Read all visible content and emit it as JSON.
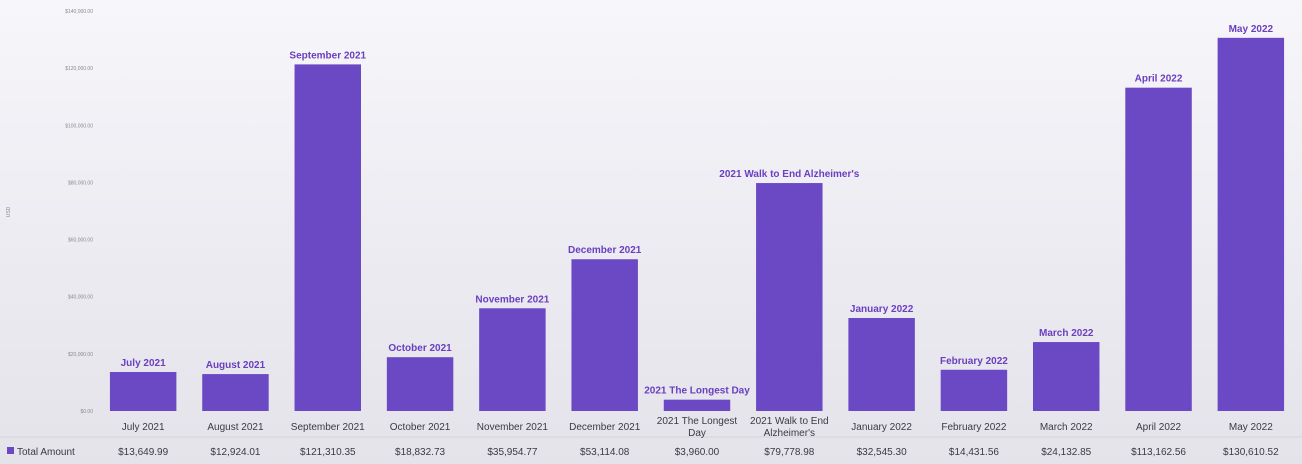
{
  "chart_data": {
    "type": "bar",
    "title": "",
    "xlabel": "",
    "ylabel": "USD",
    "ylim": [
      0,
      140000
    ],
    "yticks": [
      "$0.00",
      "$20,000.00",
      "$40,000.00",
      "$60,000.00",
      "$80,000.00",
      "$100,000.00",
      "$120,000.00",
      "$140,000.00"
    ],
    "ytick_values": [
      0,
      20000,
      40000,
      60000,
      80000,
      100000,
      120000,
      140000
    ],
    "categories": [
      "July 2021",
      "August 2021",
      "September 2021",
      "October 2021",
      "November 2021",
      "December 2021",
      "2021 The Longest Day",
      "2021 Walk to End Alzheimer's",
      "January 2022",
      "February 2022",
      "March 2022",
      "April 2022",
      "May 2022"
    ],
    "category_lines": [
      [
        "July 2021"
      ],
      [
        "August 2021"
      ],
      [
        "September 2021"
      ],
      [
        "October 2021"
      ],
      [
        "November 2021"
      ],
      [
        "December 2021"
      ],
      [
        "2021 The Longest",
        "Day"
      ],
      [
        "2021 Walk to End",
        "Alzheimer's"
      ],
      [
        "January 2022"
      ],
      [
        "February 2022"
      ],
      [
        "March 2022"
      ],
      [
        "April 2022"
      ],
      [
        "May 2022"
      ]
    ],
    "series": [
      {
        "name": "Total Amount",
        "color": "#6b48c4",
        "values": [
          13649.99,
          12924.01,
          121310.35,
          18832.73,
          35954.77,
          53114.08,
          3960.0,
          79778.98,
          32545.3,
          14431.56,
          24132.85,
          113162.56,
          130610.52
        ],
        "value_labels": [
          "$13,649.99",
          "$12,924.01",
          "$121,310.35",
          "$18,832.73",
          "$35,954.77",
          "$53,114.08",
          "$3,960.00",
          "$79,778.98",
          "$32,545.30",
          "$14,431.56",
          "$24,132.85",
          "$113,162.56",
          "$130,610.52"
        ]
      }
    ],
    "grid": false,
    "legend": "bottom-left"
  }
}
